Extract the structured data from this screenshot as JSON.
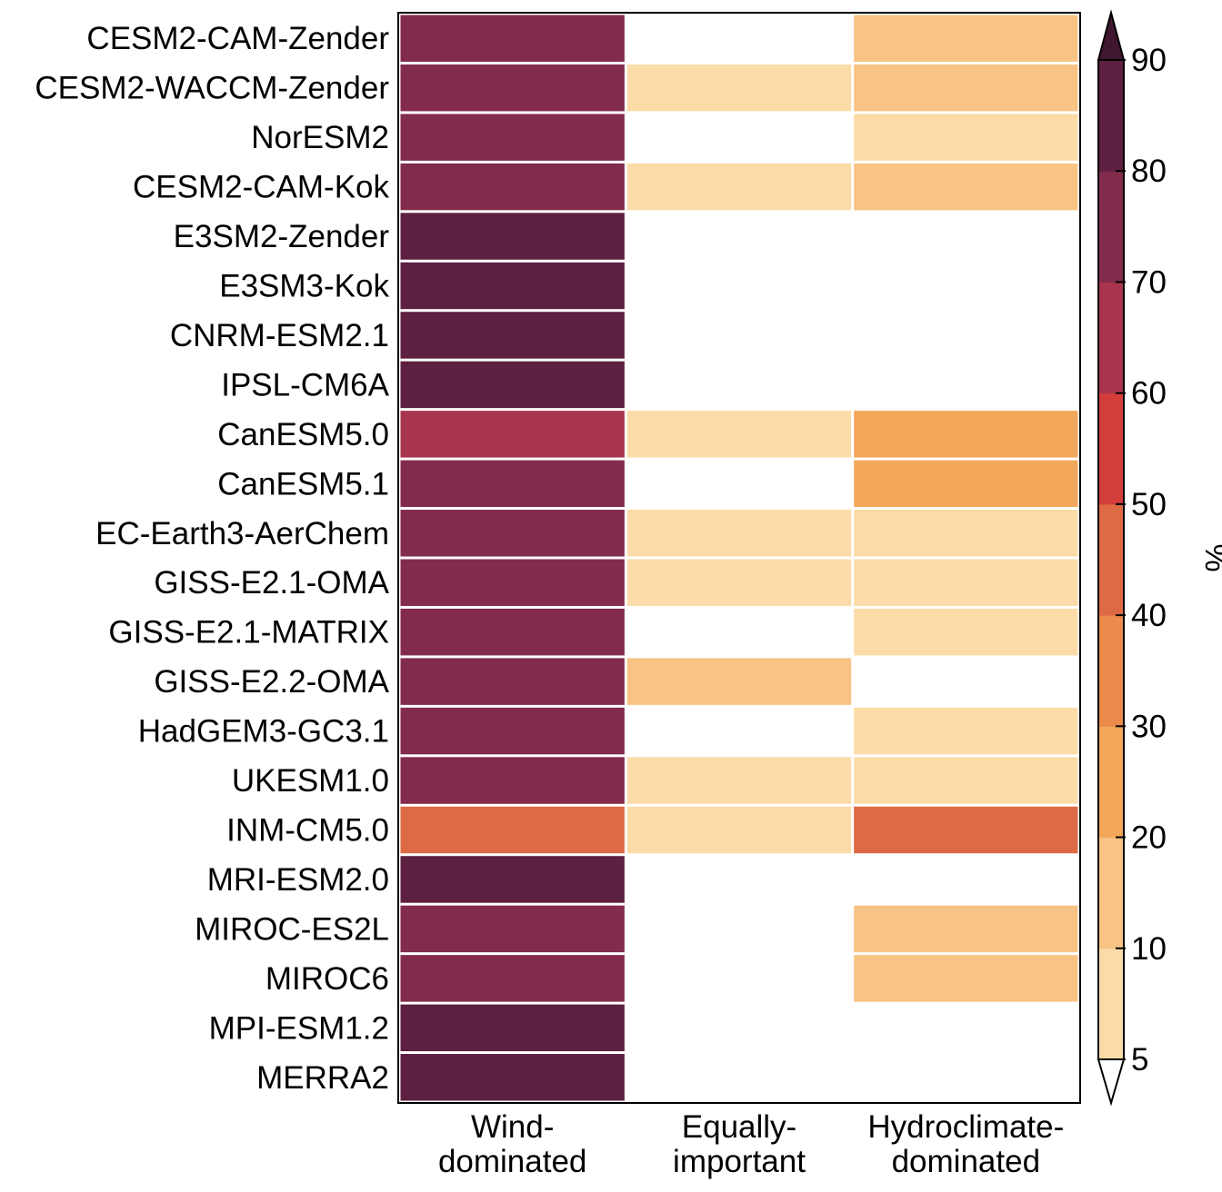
{
  "chart_data": {
    "type": "heatmap",
    "title": "",
    "rows": [
      "CESM2-CAM-Zender",
      "CESM2-WACCM-Zender",
      "NorESM2",
      "CESM2-CAM-Kok",
      "E3SM2-Zender",
      "E3SM3-Kok",
      "CNRM-ESM2.1",
      "IPSL-CM6A",
      "CanESM5.0",
      "CanESM5.1",
      "EC-Earth3-AerChem",
      "GISS-E2.1-OMA",
      "GISS-E2.1-MATRIX",
      "GISS-E2.2-OMA",
      "HadGEM3-GC3.1",
      "UKESM1.0",
      "INM-CM5.0",
      "MRI-ESM2.0",
      "MIROC-ES2L",
      "MIROC6",
      "MPI-ESM1.2",
      "MERRA2"
    ],
    "columns": [
      [
        "Wind-",
        "dominated"
      ],
      [
        "Equally-",
        "important"
      ],
      [
        "Hydroclimate-",
        "dominated"
      ]
    ],
    "values": [
      [
        75,
        null,
        15
      ],
      [
        75,
        8,
        15
      ],
      [
        75,
        null,
        8
      ],
      [
        72,
        8,
        15
      ],
      [
        85,
        null,
        null
      ],
      [
        85,
        null,
        null
      ],
      [
        85,
        null,
        null
      ],
      [
        85,
        null,
        null
      ],
      [
        65,
        8,
        25
      ],
      [
        72,
        null,
        25
      ],
      [
        75,
        8,
        8
      ],
      [
        75,
        8,
        8
      ],
      [
        75,
        null,
        8
      ],
      [
        75,
        15,
        null
      ],
      [
        75,
        null,
        8
      ],
      [
        75,
        8,
        8
      ],
      [
        45,
        8,
        45
      ],
      [
        85,
        null,
        null
      ],
      [
        75,
        null,
        15
      ],
      [
        75,
        null,
        15
      ],
      [
        85,
        null,
        null
      ],
      [
        85,
        null,
        null
      ]
    ],
    "colorbar": {
      "label": "%",
      "ticks": [
        "5",
        "10",
        "20",
        "30",
        "40",
        "50",
        "60",
        "70",
        "80",
        "90"
      ],
      "boundaries": [
        5,
        10,
        20,
        30,
        40,
        50,
        60,
        70,
        80,
        90
      ],
      "colors": [
        "#fbdca8",
        "#f8c385",
        "#f3a75a",
        "#eb8a4b",
        "#dd6a45",
        "#d33d3a",
        "#a8354d",
        "#822b4c",
        "#5d2040",
        "#40172f"
      ],
      "extend": "both",
      "under_color": "#ffffff",
      "over_color": "#40172f"
    }
  }
}
